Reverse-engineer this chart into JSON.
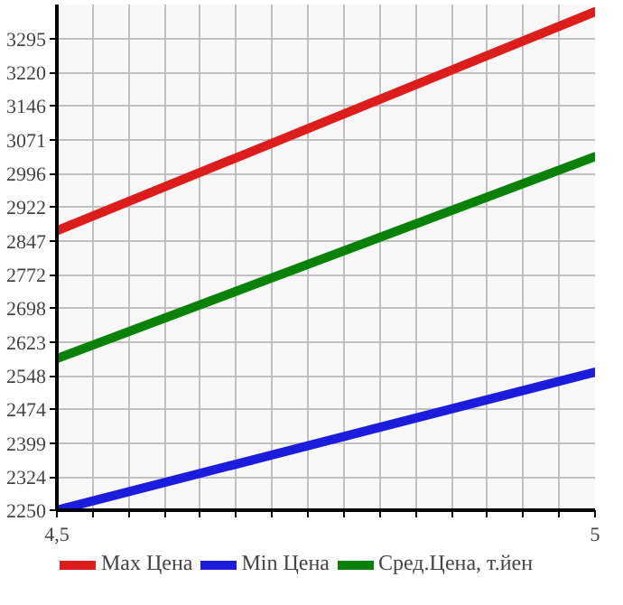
{
  "chart_data": {
    "type": "line",
    "x": [
      4.5,
      5
    ],
    "series": [
      {
        "name": "Max Цена",
        "color": "#dd1c1c",
        "values": [
          2869,
          3354
        ]
      },
      {
        "name": "Min Цена",
        "color": "#1c1cdd",
        "values": [
          2250,
          2556
        ]
      },
      {
        "name": "Сред.Цена, т.йен",
        "color": "#0a820a",
        "values": [
          2586,
          3033
        ]
      }
    ],
    "xlim": [
      4.5,
      5
    ],
    "xticks": [
      {
        "value": 4.5,
        "label": "4,5"
      },
      {
        "value": 4.5333,
        "label": null
      },
      {
        "value": 4.5667,
        "label": null
      },
      {
        "value": 4.6,
        "label": null
      },
      {
        "value": 4.6333,
        "label": null
      },
      {
        "value": 4.6667,
        "label": null
      },
      {
        "value": 4.7,
        "label": null
      },
      {
        "value": 4.7333,
        "label": null
      },
      {
        "value": 4.7667,
        "label": null
      },
      {
        "value": 4.8,
        "label": null
      },
      {
        "value": 4.8333,
        "label": null
      },
      {
        "value": 4.8667,
        "label": null
      },
      {
        "value": 4.9,
        "label": null
      },
      {
        "value": 4.9333,
        "label": null
      },
      {
        "value": 4.9667,
        "label": null
      },
      {
        "value": 5,
        "label": "5"
      }
    ],
    "ylim": [
      2250,
      3370
    ],
    "yticks": [
      2250,
      2324,
      2399,
      2474,
      2548,
      2623,
      2698,
      2772,
      2847,
      2922,
      2996,
      3071,
      3146,
      3220,
      3295
    ],
    "grid": true,
    "legend": "bottom",
    "marker": "none",
    "line_style": "solid"
  }
}
